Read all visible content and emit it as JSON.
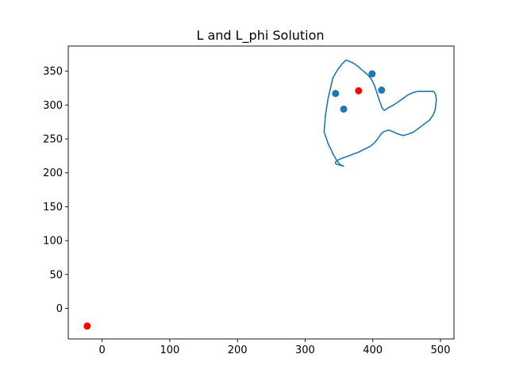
{
  "chart_data": {
    "type": "scatter",
    "title": "L and L_phi Solution",
    "xlabel": "",
    "ylabel": "",
    "xlim": [
      -50,
      520
    ],
    "ylim": [
      -45,
      387
    ],
    "xticks": [
      0,
      100,
      200,
      300,
      400,
      500
    ],
    "yticks": [
      0,
      50,
      100,
      150,
      200,
      250,
      300,
      350
    ],
    "grid": false,
    "legend": "none",
    "colors": {
      "line": "#1f77b4",
      "blue_points": "#1f77b4",
      "red_points": "#ff0000",
      "axes": "#000000"
    },
    "series": [
      {
        "type": "line",
        "x": [
          328,
          331,
          334,
          338,
          342,
          347,
          352,
          356,
          357,
          356,
          353,
          349,
          346,
          345,
          345,
          347,
          351,
          356,
          362,
          367,
          372,
          378,
          384,
          390,
          396,
          400,
          404,
          407,
          410,
          412,
          414,
          415,
          417,
          420,
          423,
          426,
          429,
          433,
          438,
          445,
          452,
          460,
          468,
          476,
          484,
          489,
          492,
          493,
          494,
          493,
          490,
          485,
          478,
          471,
          466,
          459,
          452,
          445,
          438,
          432,
          427,
          423,
          420,
          417,
          415,
          413,
          412,
          410,
          408,
          406,
          404,
          402,
          398,
          392,
          385,
          378,
          371,
          364,
          361,
          360,
          359,
          355,
          348,
          341,
          334,
          330,
          328
        ],
        "y": [
          260,
          252,
          243,
          235,
          226,
          218,
          212,
          210,
          210,
          210,
          211,
          212,
          213,
          214,
          216,
          218,
          220,
          222,
          224,
          226,
          228,
          230,
          233,
          236,
          239,
          242,
          246,
          250,
          254,
          257,
          259,
          260,
          261,
          262,
          263,
          262,
          261,
          259,
          257,
          255,
          257,
          260,
          266,
          272,
          278,
          285,
          292,
          300,
          308,
          315,
          320,
          320,
          320,
          320,
          320,
          318,
          315,
          310,
          305,
          301,
          298,
          296,
          294,
          292,
          294,
          297,
          301,
          306,
          312,
          318,
          324,
          330,
          338,
          345,
          351,
          357,
          362,
          365,
          366,
          366,
          365,
          361,
          352,
          340,
          310,
          285,
          260
        ]
      },
      {
        "type": "scatter",
        "color": "#1f77b4",
        "x": [
          345,
          357,
          399,
          413
        ],
        "y": [
          317,
          294,
          346,
          322
        ]
      },
      {
        "type": "scatter",
        "color": "#ff0000",
        "x": [
          379,
          -22
        ],
        "y": [
          321,
          -26
        ]
      }
    ]
  }
}
